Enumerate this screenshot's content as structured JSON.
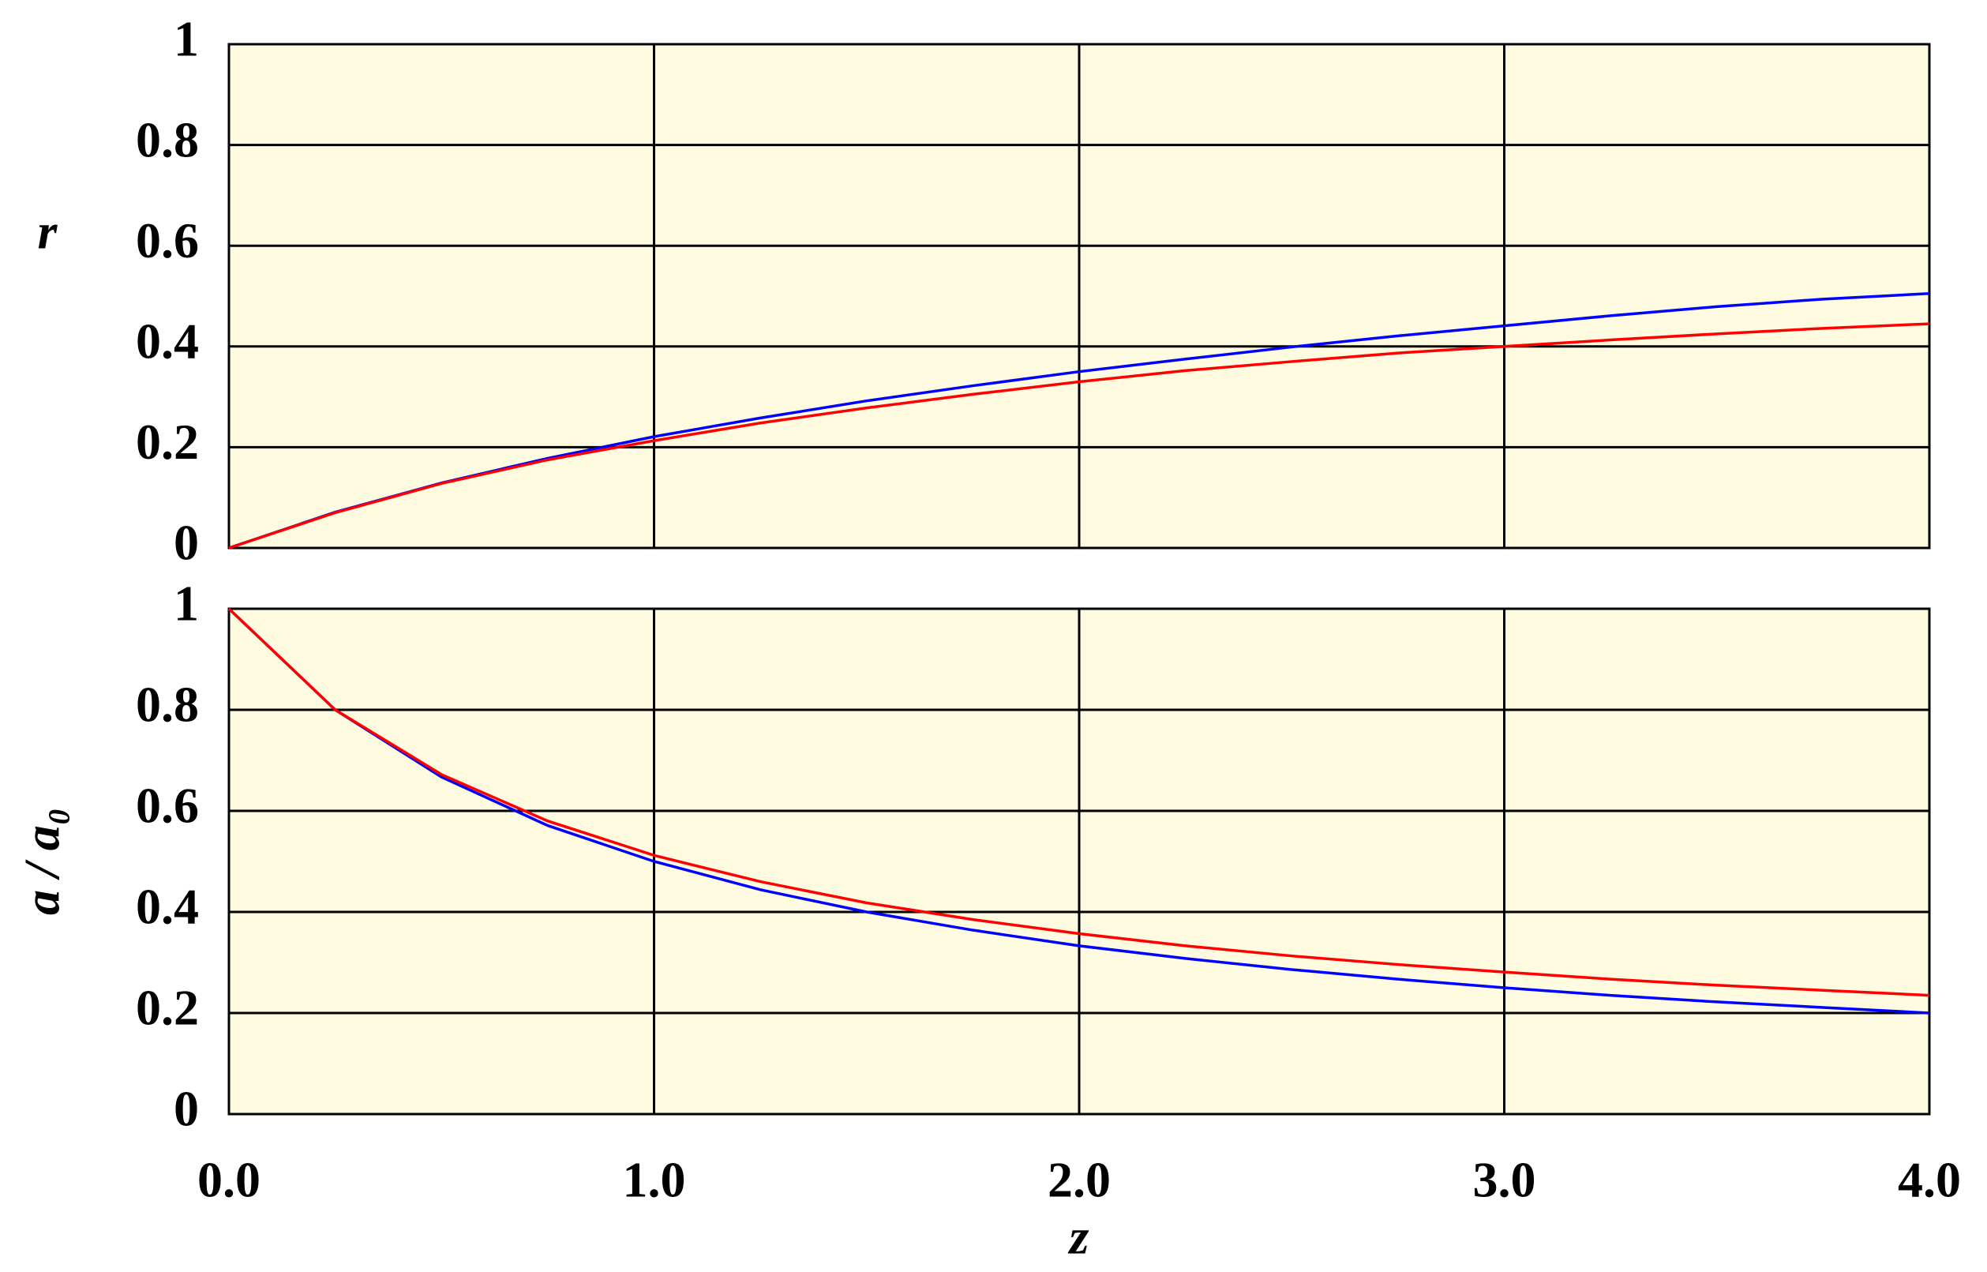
{
  "chart_data": [
    {
      "type": "line",
      "y_label": "r",
      "x": [
        0,
        0.25,
        0.5,
        0.75,
        1,
        1.25,
        1.5,
        1.75,
        2,
        2.25,
        2.5,
        2.75,
        3,
        3.25,
        3.5,
        3.75,
        4
      ],
      "series": [
        {
          "name": null,
          "color": "#0000ff",
          "values": [
            0,
            0.071,
            0.129,
            0.178,
            0.221,
            0.258,
            0.292,
            0.322,
            0.35,
            0.375,
            0.399,
            0.421,
            0.441,
            0.461,
            0.479,
            0.494,
            0.505
          ]
        },
        {
          "name": null,
          "color": "#ff0000",
          "values": [
            0,
            0.07,
            0.128,
            0.175,
            0.213,
            0.248,
            0.278,
            0.305,
            0.33,
            0.352,
            0.37,
            0.387,
            0.4,
            0.413,
            0.425,
            0.436,
            0.445
          ]
        }
      ],
      "xlim": [
        0,
        4
      ],
      "xticks": [
        0,
        1,
        2,
        3,
        4
      ],
      "ylim": [
        0,
        1
      ],
      "yticks": [
        0,
        0.2,
        0.4,
        0.6,
        0.8,
        1
      ],
      "grid": true
    },
    {
      "type": "line",
      "y_label": "a / a₀",
      "x_label": "z",
      "x": [
        0,
        0.25,
        0.5,
        0.75,
        1,
        1.25,
        1.5,
        1.75,
        2,
        2.25,
        2.5,
        2.75,
        3,
        3.25,
        3.5,
        3.75,
        4
      ],
      "series": [
        {
          "name": null,
          "color": "#0000ff",
          "values": [
            1,
            0.8,
            0.667,
            0.571,
            0.5,
            0.444,
            0.4,
            0.364,
            0.333,
            0.308,
            0.286,
            0.267,
            0.25,
            0.235,
            0.222,
            0.211,
            0.2
          ]
        },
        {
          "name": null,
          "color": "#ff0000",
          "values": [
            1,
            0.8,
            0.672,
            0.58,
            0.512,
            0.46,
            0.418,
            0.385,
            0.357,
            0.333,
            0.313,
            0.296,
            0.281,
            0.267,
            0.255,
            0.245,
            0.235
          ]
        }
      ],
      "xlim": [
        0,
        4
      ],
      "xticks": [
        {
          "value": 0,
          "label": "0.0"
        },
        {
          "value": 1,
          "label": "1.0"
        },
        {
          "value": 2,
          "label": "2.0"
        },
        {
          "value": 3,
          "label": "3.0"
        },
        {
          "value": 4,
          "label": "4.0"
        }
      ],
      "ylim": [
        0,
        1
      ],
      "yticks": [
        0,
        0.2,
        0.4,
        0.6,
        0.8,
        1
      ],
      "grid": true
    }
  ]
}
